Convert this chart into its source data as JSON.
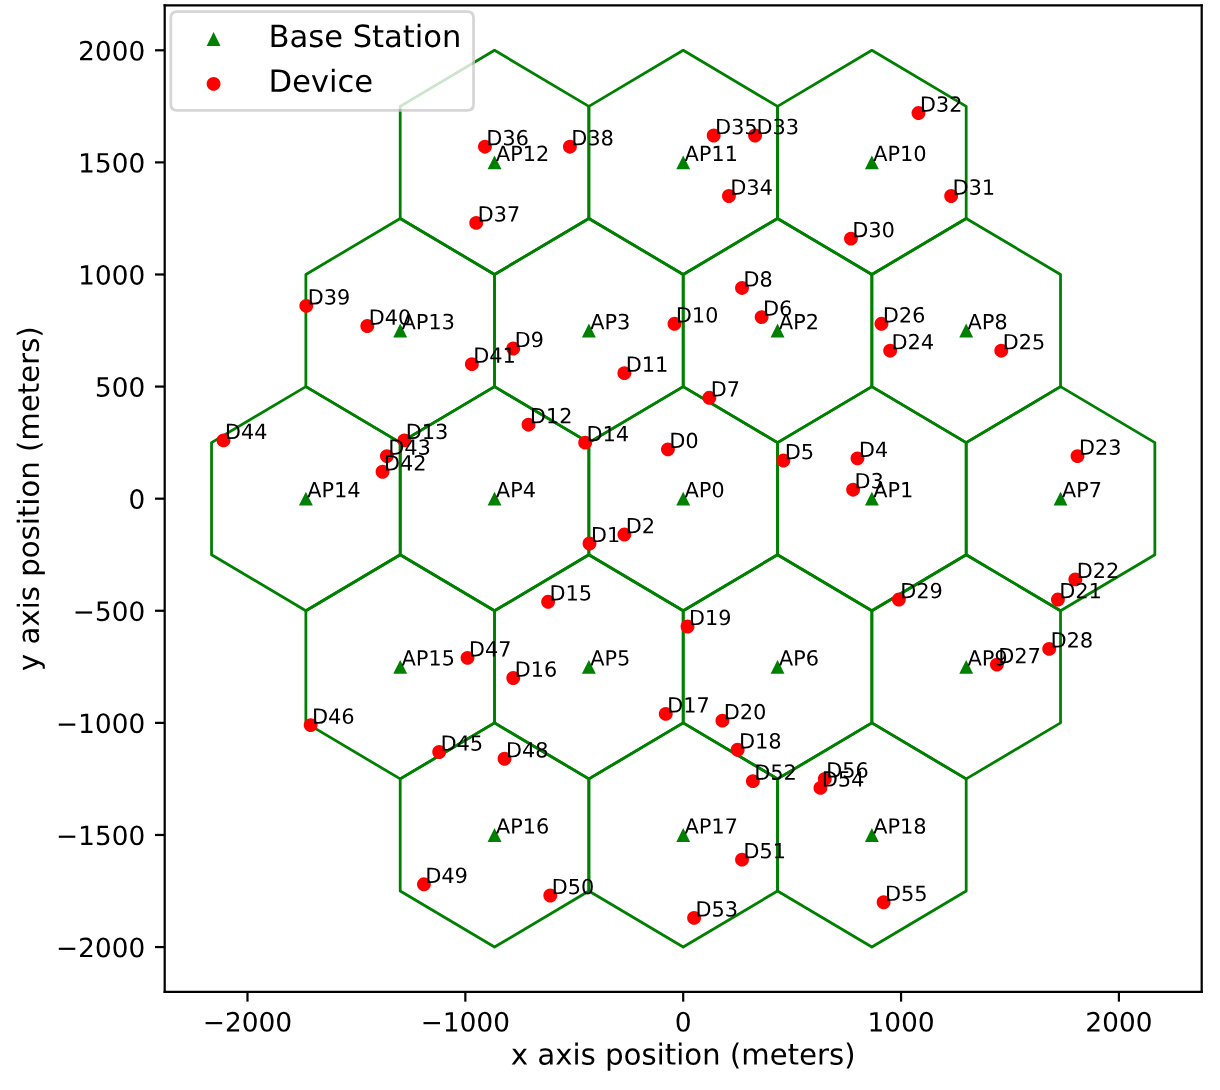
{
  "chart_data": {
    "type": "scatter",
    "xlabel": "x axis position (meters)",
    "ylabel": "y axis position (meters)",
    "xlim": [
      -2380,
      2380
    ],
    "ylim": [
      -2200,
      2200
    ],
    "xticks": [
      {
        "value": -2000,
        "label": "−2000"
      },
      {
        "value": -1000,
        "label": "−1000"
      },
      0,
      1000,
      2000
    ],
    "yticks": [
      {
        "value": -2000,
        "label": "−2000"
      },
      {
        "value": -1500,
        "label": "−1500"
      },
      {
        "value": -1000,
        "label": "−1000"
      },
      {
        "value": -500,
        "label": "−500"
      },
      0,
      500,
      1000,
      1500,
      2000
    ],
    "grid": false,
    "legend": "top left",
    "series": [
      {
        "name": "Base Station",
        "color": "#008000",
        "marker": "triangle",
        "x": [
          0,
          866,
          433,
          -433,
          -866,
          -433,
          433,
          1732,
          1299,
          1299,
          866,
          0,
          -866,
          -1299,
          -1732,
          -1299,
          -866,
          0,
          866
        ],
        "values": [
          0,
          0,
          750,
          750,
          0,
          -750,
          -750,
          0,
          750,
          -750,
          1500,
          1500,
          1500,
          750,
          0,
          -750,
          -1500,
          -1500,
          -1500
        ],
        "value_labels": [
          "AP0",
          "AP1",
          "AP2",
          "AP3",
          "AP4",
          "AP5",
          "AP6",
          "AP7",
          "AP8",
          "AP9",
          "AP10",
          "AP11",
          "AP12",
          "AP13",
          "AP14",
          "AP15",
          "AP16",
          "AP17",
          "AP18"
        ]
      },
      {
        "name": "Device",
        "color": "#ff0000",
        "marker": "circle",
        "x": [
          -70,
          -430,
          -270,
          780,
          800,
          460,
          360,
          120,
          270,
          -780,
          -40,
          -270,
          -710,
          -1280,
          -450,
          -620,
          -780,
          -80,
          250,
          20,
          180,
          1720,
          1800,
          1810,
          950,
          1460,
          910,
          1440,
          1680,
          990,
          770,
          1230,
          1080,
          330,
          210,
          140,
          -910,
          -950,
          -520,
          -1730,
          -1450,
          -970,
          -1380,
          -1360,
          -2110,
          -1120,
          -1710,
          -990,
          -820,
          -1190,
          -610,
          270,
          320,
          50,
          630,
          920,
          650
        ],
        "values": [
          220,
          -200,
          -160,
          40,
          180,
          170,
          810,
          450,
          940,
          670,
          780,
          560,
          330,
          260,
          250,
          -460,
          -800,
          -960,
          -1120,
          -570,
          -990,
          -450,
          -360,
          190,
          660,
          660,
          780,
          -740,
          -670,
          -450,
          1160,
          1350,
          1720,
          1620,
          1350,
          1620,
          1570,
          1230,
          1570,
          860,
          770,
          600,
          120,
          190,
          260,
          -1130,
          -1010,
          -710,
          -1160,
          -1720,
          -1770,
          -1610,
          -1260,
          -1870,
          -1290,
          -1800,
          -1250
        ],
        "value_labels": [
          "D0",
          "D1",
          "D2",
          "D3",
          "D4",
          "D5",
          "D6",
          "D7",
          "D8",
          "D9",
          "D10",
          "D11",
          "D12",
          "D13",
          "D14",
          "D15",
          "D16",
          "D17",
          "D18",
          "D19",
          "D20",
          "D21",
          "D22",
          "D23",
          "D24",
          "D25",
          "D26",
          "D27",
          "D28",
          "D29",
          "D30",
          "D31",
          "D32",
          "D33",
          "D34",
          "D35",
          "D36",
          "D37",
          "D38",
          "D39",
          "D40",
          "D41",
          "D42",
          "D43",
          "D44",
          "D45",
          "D46",
          "D47",
          "D48",
          "D49",
          "D50",
          "D51",
          "D52",
          "D53",
          "D54",
          "D55",
          "D56"
        ]
      }
    ]
  }
}
